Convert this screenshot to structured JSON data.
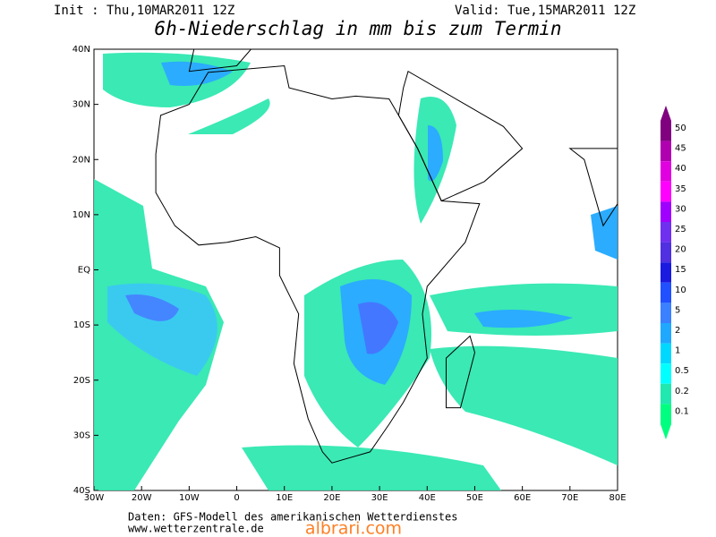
{
  "header": {
    "init": "Init : Thu,10MAR2011 12Z",
    "valid": "Valid: Tue,15MAR2011 12Z",
    "title": "6h-Niederschlag in mm bis zum Termin"
  },
  "map": {
    "lat_labels": [
      "40N",
      "30N",
      "20N",
      "10N",
      "EQ",
      "10S",
      "20S",
      "30S",
      "40S"
    ],
    "lon_labels": [
      "30W",
      "20W",
      "10W",
      "0",
      "10E",
      "20E",
      "30E",
      "40E",
      "50E",
      "60E",
      "70E",
      "80E"
    ]
  },
  "legend": {
    "items": [
      {
        "label": "50",
        "color": "#800080"
      },
      {
        "label": "45",
        "color": "#b000b0"
      },
      {
        "label": "40",
        "color": "#e000e0"
      },
      {
        "label": "35",
        "color": "#ff00ff"
      },
      {
        "label": "30",
        "color": "#a000ff"
      },
      {
        "label": "25",
        "color": "#7030f0"
      },
      {
        "label": "20",
        "color": "#5030e0"
      },
      {
        "label": "15",
        "color": "#1a1ae0"
      },
      {
        "label": "10",
        "color": "#2050ff"
      },
      {
        "label": "5",
        "color": "#3a80ff"
      },
      {
        "label": "2",
        "color": "#20a8ff"
      },
      {
        "label": "1",
        "color": "#00d8ff"
      },
      {
        "label": "0.5",
        "color": "#00ffff"
      },
      {
        "label": "0.2",
        "color": "#20e8b0"
      },
      {
        "label": "0.1",
        "color": "#00ff80"
      }
    ]
  },
  "footer": {
    "line1": "Daten: GFS-Modell des amerikanischen Wetterdienstes",
    "line2": "www.wetterzentrale.de",
    "watermark": "albrari.com"
  }
}
